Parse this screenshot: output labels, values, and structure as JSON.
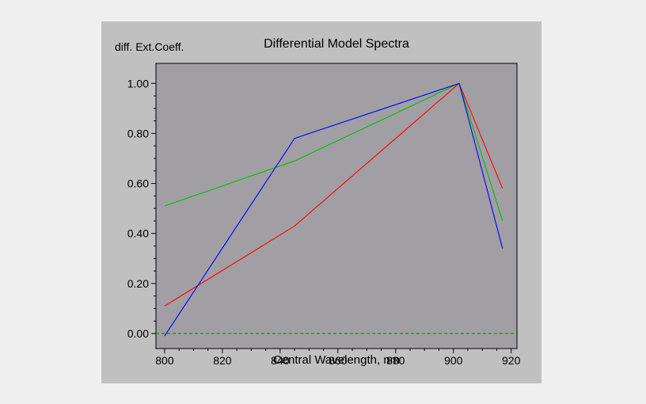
{
  "chart_data": {
    "type": "line",
    "title": "Differential Model Spectra",
    "ylabel": "diff. Ext.Coeff.",
    "xlabel": "Central Wavelength, nm",
    "xlim": [
      797,
      922
    ],
    "ylim": [
      -0.06,
      1.08
    ],
    "x_ticks": [
      800,
      820,
      840,
      860,
      880,
      900,
      920
    ],
    "x_tick_labels": [
      "800",
      "820",
      "840",
      "860",
      "880",
      "900",
      "920"
    ],
    "y_ticks": [
      0,
      0.2,
      0.4,
      0.6,
      0.8,
      1.0
    ],
    "y_tick_labels": [
      "0.00",
      "0.20",
      "0.40",
      "0.60",
      "0.80",
      "1.00"
    ],
    "grid": false,
    "legend": "none",
    "reference_line": {
      "y": 0,
      "style": "dashed",
      "color": "#008000"
    },
    "series": [
      {
        "color": "#ff0000",
        "x": [
          800,
          845,
          902,
          917
        ],
        "values": [
          0.11,
          0.43,
          1.0,
          0.58
        ]
      },
      {
        "color": "#00c000",
        "x": [
          800,
          845,
          902,
          917
        ],
        "values": [
          0.51,
          0.69,
          1.0,
          0.45
        ]
      },
      {
        "color": "#0000ff",
        "x": [
          800,
          845,
          902,
          917
        ],
        "values": [
          -0.01,
          0.78,
          1.0,
          0.34
        ]
      }
    ],
    "colors": {
      "panel_bg": "#c0c0c0",
      "plot_bg": "#a19fa4"
    }
  }
}
